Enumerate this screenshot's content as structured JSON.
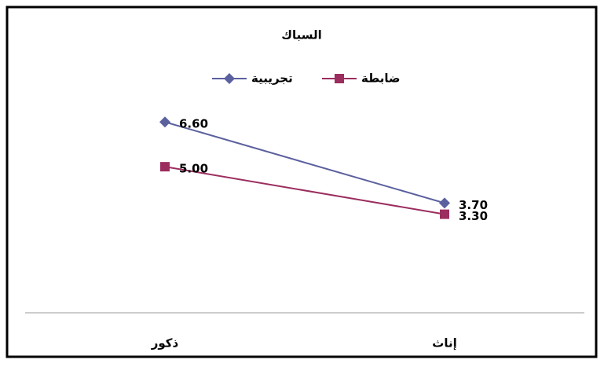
{
  "chart_data": {
    "type": "line",
    "title": "السباك",
    "categories": [
      "ذكور",
      "إناث"
    ],
    "series": [
      {
        "name": "تجريبية",
        "color": "#5B609E",
        "marker": "diamond",
        "values": [
          6.6,
          3.7
        ],
        "value_labels": [
          "6.60",
          "3.70"
        ]
      },
      {
        "name": "ضابطة",
        "color": "#9B2D5F",
        "marker": "square",
        "values": [
          5.0,
          3.3
        ],
        "value_labels": [
          "5.00",
          "3.30"
        ]
      }
    ],
    "ylim": [
      0,
      7
    ],
    "legend": "top"
  }
}
